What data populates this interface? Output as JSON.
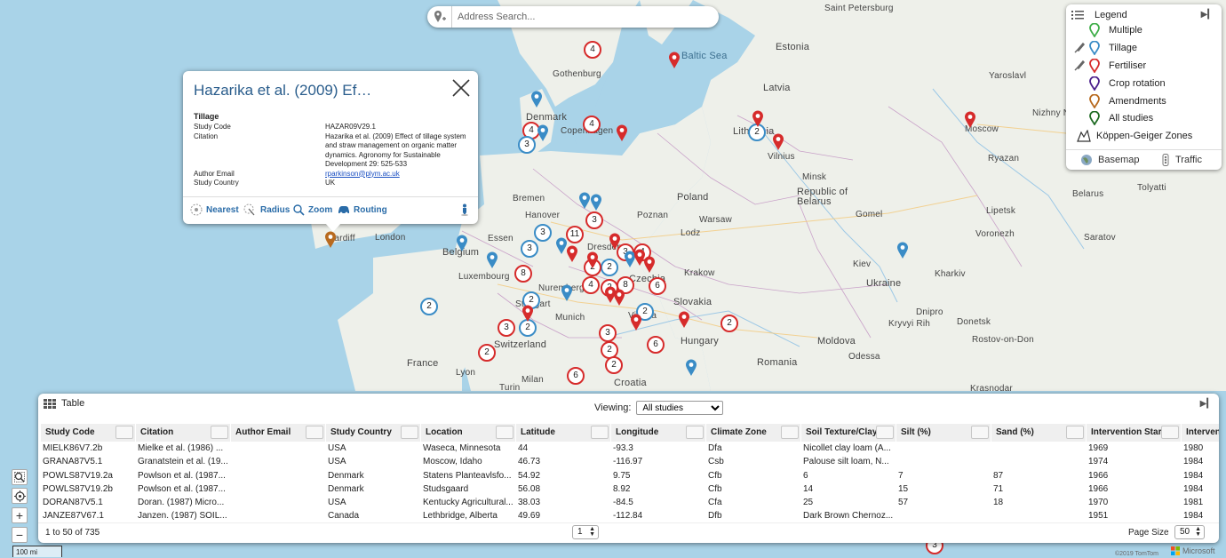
{
  "search": {
    "placeholder": "Address Search..."
  },
  "map_labels": {
    "places": [
      "Saint Petersburg",
      "Estonia",
      "Baltic Sea",
      "Yaroslavl",
      "Latvia",
      "Gothenburg",
      "Denmark",
      "Copenhagen",
      "Lithuania",
      "Moscow",
      "Nizhny N",
      "Vilnius",
      "Ryazan",
      "Minsk",
      "Belarus",
      "Republic of Belarus",
      "Tolyatti",
      "Bremen",
      "Poland",
      "Gomel",
      "Lipetsk",
      "Hanover",
      "Poznan",
      "Warsaw",
      "Essen",
      "Lodz",
      "Voronezh",
      "Saratov",
      "Cardiff",
      "London",
      "Belgium",
      "Kiev",
      "Luxembourg",
      "Krakow",
      "Ukraine",
      "Kharkiv",
      "Nuremberg",
      "Stuttgart",
      "Slovakia",
      "Dnipro",
      "Munich",
      "Kryvyi Rih",
      "Donetsk",
      "Switzerland",
      "Hungary",
      "Moldova",
      "Rostov-on-Don",
      "France",
      "Odessa",
      "Lyon",
      "Milan",
      "Romania",
      "Turin",
      "Croatia",
      "Krasnodar",
      "Dresden",
      "Czechia",
      "Vienna"
    ]
  },
  "clusters": [
    "4",
    "4",
    "4",
    "3",
    "3",
    "11",
    "3",
    "3",
    "4",
    "3",
    "8",
    "2",
    "2",
    "4",
    "2",
    "8",
    "6",
    "2",
    "2",
    "3",
    "2",
    "3",
    "6",
    "2",
    "2",
    "2",
    "6",
    "2",
    "2",
    "2",
    "3"
  ],
  "legend": {
    "title": "Legend",
    "items": [
      {
        "label": "Multiple",
        "color": "#3fae49"
      },
      {
        "label": "Tillage",
        "color": "#3a8cc6"
      },
      {
        "label": "Fertiliser",
        "color": "#d62b2b"
      },
      {
        "label": "Crop rotation",
        "color": "#4b1f8c"
      },
      {
        "label": "Amendments",
        "color": "#b86a1f"
      },
      {
        "label": "All studies",
        "color": "#1f6b24"
      },
      {
        "label": "Köppen-Geiger Zones",
        "color": "#333333"
      }
    ],
    "basemap": "Basemap",
    "traffic": "Traffic"
  },
  "popup": {
    "title": "Hazarika et al. (2009) Ef…",
    "subhead": "Tillage",
    "rows": [
      {
        "key": "Study Code",
        "value": "HAZAR09V29.1"
      },
      {
        "key": "Citation",
        "value": "Hazarika et al. (2009) Effect of tillage system and straw management on organic matter dynamics. Agronomy for Sustainable Development 29: 525-533"
      },
      {
        "key": "Author Email",
        "value": "rparkinson@plym.ac.uk"
      },
      {
        "key": "Study Country",
        "value": "UK"
      }
    ],
    "actions": {
      "nearest": "Nearest",
      "radius": "Radius",
      "zoom": "Zoom",
      "routing": "Routing"
    }
  },
  "table": {
    "title": "Table",
    "viewing_label": "Viewing:",
    "viewing_value": "All studies",
    "columns": [
      "Study Code",
      "Citation",
      "Author Email",
      "Study Country",
      "Location",
      "Latitude",
      "Longitude",
      "Climate Zone",
      "Soil Texture/Clay...",
      "Silt (%)",
      "Sand (%)",
      "Intervention Star...",
      "Intervent"
    ],
    "rows": [
      [
        "MIELK86V7.2b",
        "Mielke et al. (1986) ...",
        "",
        "USA",
        "Waseca, Minnesota",
        "44",
        "-93.3",
        "Dfa",
        "Nicollet clay loam (A...",
        "",
        "",
        "1969",
        "1980"
      ],
      [
        "GRANA87V5.1",
        "Granatstein et al. (19...",
        "",
        "USA",
        "Moscow, Idaho",
        "46.73",
        "-116.97",
        "Csb",
        "Palouse silt loam, N...",
        "",
        "",
        "1974",
        "1984"
      ],
      [
        "POWLS87V19.2a",
        "Powlson et al. (1987...",
        "",
        "Denmark",
        "Statens Planteavlsfo...",
        "54.92",
        "9.75",
        "Cfb",
        "6",
        "7",
        "87",
        "1966",
        "1984"
      ],
      [
        "POWLS87V19.2b",
        "Powlson et al. (1987...",
        "",
        "Denmark",
        "Studsgaard",
        "56.08",
        "8.92",
        "Cfb",
        "14",
        "15",
        "71",
        "1966",
        "1984"
      ],
      [
        "DORAN87V5.1",
        "Doran. (1987) Micro...",
        "",
        "USA",
        "Kentucky Agricultural...",
        "38.03",
        "-84.5",
        "Cfa",
        "25",
        "57",
        "18",
        "1970",
        "1981"
      ],
      [
        "JANZE87V67.1",
        "Janzen. (1987) SOIL...",
        "",
        "Canada",
        "Lethbridge, Alberta",
        "49.69",
        "-112.84",
        "Dfb",
        "Dark Brown Chernoz...",
        "",
        "",
        "1951",
        "1984"
      ]
    ],
    "count_text": "1 to 50 of 735",
    "page": "1",
    "page_size_label": "Page Size",
    "page_size": "50"
  },
  "scale": "100 mi",
  "copyright": "©2019 TomTom",
  "ms_logo": "Microsoft"
}
